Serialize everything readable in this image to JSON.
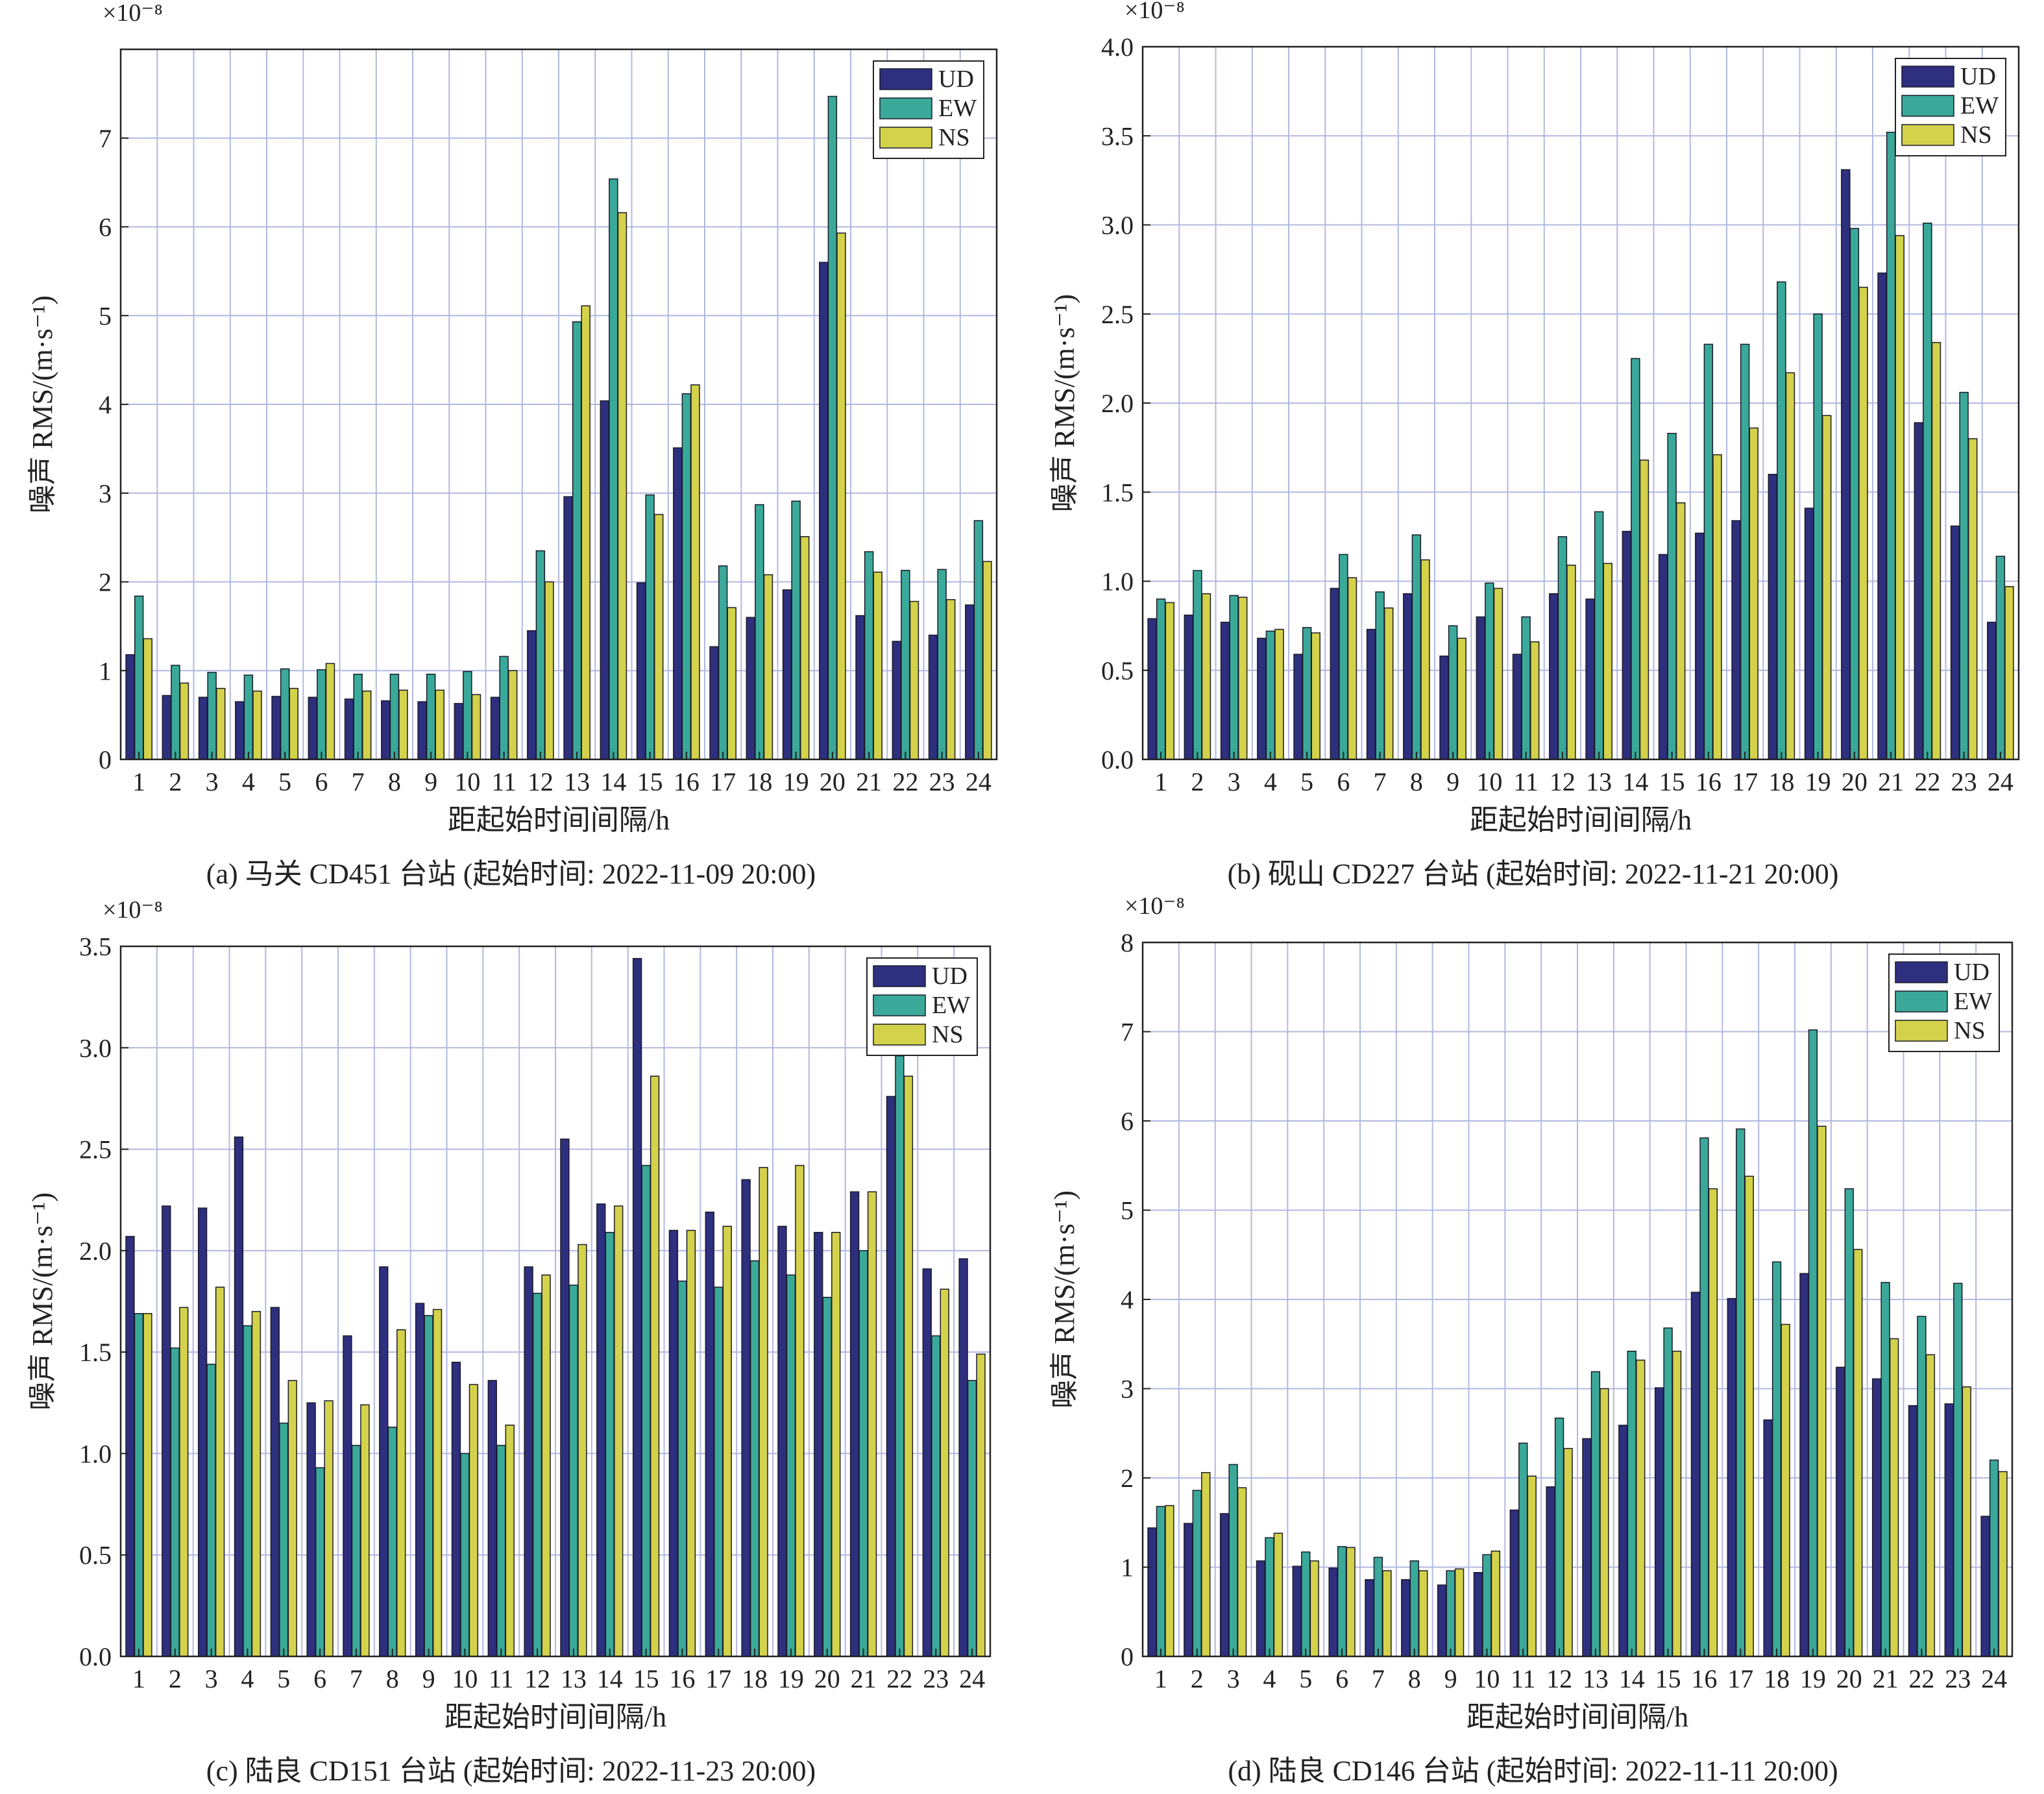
{
  "legend_labels": [
    "UD",
    "EW",
    "NS"
  ],
  "colors": {
    "UD": "#2e2f7e",
    "EW": "#3aa99a",
    "NS": "#d4d24a",
    "grid": "#b3b8e0",
    "axis": "#222222"
  },
  "chart_data": [
    {
      "type": "bar",
      "caption": "(a) 马关 CD451 台站 (起始时间: 2022-11-09 20:00)",
      "ylabel": "噪声 RMS/(m·s⁻¹)",
      "xlabel": "距起始时间间隔/h",
      "y_multiplier": "×10⁻⁸",
      "ylim": [
        0,
        8
      ],
      "y_ticks": [
        "0",
        "1",
        "2",
        "3",
        "4",
        "5",
        "6",
        "7"
      ],
      "y_tick_values": [
        0,
        1,
        2,
        3,
        4,
        5,
        6,
        7
      ],
      "legend_position": "top-right",
      "grid": true,
      "categories": [
        "1",
        "2",
        "3",
        "4",
        "5",
        "6",
        "7",
        "8",
        "9",
        "10",
        "11",
        "12",
        "13",
        "14",
        "15",
        "16",
        "17",
        "18",
        "19",
        "20",
        "21",
        "22",
        "23",
        "24"
      ],
      "series": [
        {
          "name": "UD",
          "values": [
            1.18,
            0.72,
            0.7,
            0.65,
            0.71,
            0.7,
            0.68,
            0.66,
            0.65,
            0.63,
            0.7,
            1.45,
            2.96,
            4.04,
            1.99,
            3.51,
            1.27,
            1.6,
            1.91,
            5.6,
            1.62,
            1.33,
            1.4,
            1.74
          ]
        },
        {
          "name": "EW",
          "values": [
            1.84,
            1.06,
            0.98,
            0.95,
            1.02,
            1.01,
            0.96,
            0.96,
            0.96,
            0.99,
            1.16,
            2.35,
            4.93,
            6.54,
            2.98,
            4.12,
            2.18,
            2.87,
            2.91,
            7.47,
            2.34,
            2.13,
            2.14,
            2.69
          ]
        },
        {
          "name": "NS",
          "values": [
            1.36,
            0.86,
            0.8,
            0.77,
            0.8,
            1.08,
            0.77,
            0.78,
            0.78,
            0.73,
            1.0,
            2.0,
            5.11,
            6.16,
            2.76,
            4.22,
            1.71,
            2.08,
            2.51,
            5.93,
            2.11,
            1.78,
            1.8,
            2.23
          ]
        }
      ]
    },
    {
      "type": "bar",
      "caption": "(b) 砚山 CD227 台站 (起始时间: 2022-11-21 20:00)",
      "ylabel": "噪声 RMS/(m·s⁻¹)",
      "xlabel": "距起始时间间隔/h",
      "y_multiplier": "×10⁻⁸",
      "ylim": [
        0,
        4
      ],
      "y_ticks": [
        "0.0",
        "0.5",
        "1.0",
        "1.5",
        "2.0",
        "2.5",
        "3.0",
        "3.5",
        "4.0"
      ],
      "y_tick_values": [
        0,
        0.5,
        1.0,
        1.5,
        2.0,
        2.5,
        3.0,
        3.5,
        4.0
      ],
      "legend_position": "top-right",
      "grid": true,
      "categories": [
        "1",
        "2",
        "3",
        "4",
        "5",
        "6",
        "7",
        "8",
        "9",
        "10",
        "11",
        "12",
        "13",
        "14",
        "15",
        "16",
        "17",
        "18",
        "19",
        "20",
        "21",
        "22",
        "23",
        "24"
      ],
      "series": [
        {
          "name": "UD",
          "values": [
            0.79,
            0.81,
            0.77,
            0.68,
            0.59,
            0.96,
            0.73,
            0.93,
            0.58,
            0.8,
            0.59,
            0.93,
            0.9,
            1.28,
            1.15,
            1.27,
            1.34,
            1.6,
            1.41,
            3.31,
            2.73,
            1.89,
            1.31,
            0.77
          ]
        },
        {
          "name": "EW",
          "values": [
            0.9,
            1.06,
            0.92,
            0.72,
            0.74,
            1.15,
            0.94,
            1.26,
            0.75,
            0.99,
            0.8,
            1.25,
            1.39,
            2.25,
            1.83,
            2.33,
            2.33,
            2.68,
            2.5,
            2.98,
            3.52,
            3.01,
            2.06,
            1.14
          ]
        },
        {
          "name": "NS",
          "values": [
            0.88,
            0.93,
            0.91,
            0.73,
            0.71,
            1.02,
            0.85,
            1.12,
            0.68,
            0.96,
            0.66,
            1.09,
            1.1,
            1.68,
            1.44,
            1.71,
            1.86,
            2.17,
            1.93,
            2.65,
            2.94,
            2.34,
            1.8,
            0.97
          ]
        }
      ]
    },
    {
      "type": "bar",
      "caption": "(c) 陆良 CD151 台站 (起始时间: 2022-11-23 20:00)",
      "ylabel": "噪声 RMS/(m·s⁻¹)",
      "xlabel": "距起始时间间隔/h",
      "y_multiplier": "×10⁻⁸",
      "ylim": [
        0,
        3.5
      ],
      "y_ticks": [
        "0.0",
        "0.5",
        "1.0",
        "1.5",
        "2.0",
        "2.5",
        "3.0",
        "3.5"
      ],
      "y_tick_values": [
        0,
        0.5,
        1.0,
        1.5,
        2.0,
        2.5,
        3.0,
        3.5
      ],
      "legend_position": "top-right",
      "grid": true,
      "categories": [
        "1",
        "2",
        "3",
        "4",
        "5",
        "6",
        "7",
        "8",
        "9",
        "10",
        "11",
        "12",
        "13",
        "14",
        "15",
        "16",
        "17",
        "18",
        "19",
        "20",
        "21",
        "22",
        "23",
        "24"
      ],
      "series": [
        {
          "name": "UD",
          "values": [
            2.07,
            2.22,
            2.21,
            2.56,
            1.72,
            1.25,
            1.58,
            1.92,
            1.74,
            1.45,
            1.36,
            1.92,
            2.55,
            2.23,
            3.44,
            2.1,
            2.19,
            2.35,
            2.12,
            2.09,
            2.29,
            2.76,
            1.91,
            1.96
          ]
        },
        {
          "name": "EW",
          "values": [
            1.69,
            1.52,
            1.44,
            1.63,
            1.15,
            0.93,
            1.04,
            1.13,
            1.68,
            1.0,
            1.04,
            1.79,
            1.83,
            2.09,
            2.42,
            1.85,
            1.82,
            1.95,
            1.88,
            1.77,
            2.0,
            2.96,
            1.58,
            1.36
          ]
        },
        {
          "name": "NS",
          "values": [
            1.69,
            1.72,
            1.82,
            1.7,
            1.36,
            1.26,
            1.24,
            1.61,
            1.71,
            1.34,
            1.14,
            1.88,
            2.03,
            2.22,
            2.86,
            2.1,
            2.12,
            2.41,
            2.42,
            2.09,
            2.29,
            2.86,
            1.81,
            1.49
          ]
        }
      ]
    },
    {
      "type": "bar",
      "caption": "(d) 陆良 CD146 台站 (起始时间: 2022-11-11 20:00)",
      "ylabel": "噪声 RMS/(m·s⁻¹)",
      "xlabel": "距起始时间间隔/h",
      "y_multiplier": "×10⁻⁸",
      "ylim": [
        0,
        8
      ],
      "y_ticks": [
        "0",
        "1",
        "2",
        "3",
        "4",
        "5",
        "6",
        "7",
        "8"
      ],
      "y_tick_values": [
        0,
        1,
        2,
        3,
        4,
        5,
        6,
        7,
        8
      ],
      "legend_position": "top-right",
      "grid": true,
      "categories": [
        "1",
        "2",
        "3",
        "4",
        "5",
        "6",
        "7",
        "8",
        "9",
        "10",
        "11",
        "12",
        "13",
        "14",
        "15",
        "16",
        "17",
        "18",
        "19",
        "20",
        "21",
        "22",
        "23",
        "24"
      ],
      "series": [
        {
          "name": "UD",
          "values": [
            1.44,
            1.49,
            1.6,
            1.07,
            1.01,
            0.99,
            0.86,
            0.86,
            0.8,
            0.94,
            1.64,
            1.9,
            2.44,
            2.59,
            3.01,
            4.08,
            4.01,
            2.65,
            4.29,
            3.24,
            3.11,
            2.81,
            2.83,
            1.57
          ]
        },
        {
          "name": "EW",
          "values": [
            1.68,
            1.86,
            2.15,
            1.33,
            1.17,
            1.23,
            1.11,
            1.07,
            0.96,
            1.14,
            2.39,
            2.67,
            3.19,
            3.42,
            3.68,
            5.81,
            5.91,
            4.42,
            7.02,
            5.24,
            4.19,
            3.81,
            4.18,
            2.2
          ]
        },
        {
          "name": "NS",
          "values": [
            1.69,
            2.06,
            1.89,
            1.38,
            1.07,
            1.22,
            0.96,
            0.96,
            0.98,
            1.18,
            2.02,
            2.33,
            3.0,
            3.32,
            3.42,
            5.24,
            5.38,
            3.72,
            5.94,
            4.56,
            3.56,
            3.38,
            3.02,
            2.07
          ]
        }
      ]
    }
  ]
}
